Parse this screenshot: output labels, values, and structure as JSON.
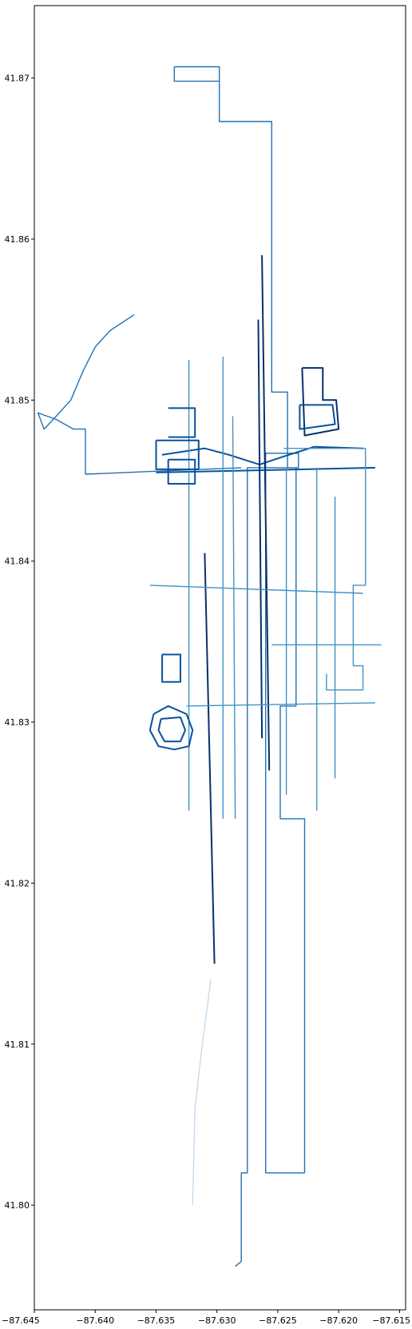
{
  "chart_data": {
    "type": "map",
    "title": "",
    "xlabel": "",
    "ylabel": "",
    "xlim": [
      -87.645,
      -87.6145
    ],
    "ylim": [
      41.7935,
      41.8745
    ],
    "grid": false,
    "x_ticks": [
      {
        "value": -87.645,
        "label": "−87.645"
      },
      {
        "value": -87.64,
        "label": "−87.640"
      },
      {
        "value": -87.635,
        "label": "−87.635"
      },
      {
        "value": -87.63,
        "label": "−87.630"
      },
      {
        "value": -87.625,
        "label": "−87.625"
      },
      {
        "value": -87.62,
        "label": "−87.620"
      },
      {
        "value": -87.615,
        "label": "−87.615"
      }
    ],
    "y_ticks": [
      {
        "value": 41.8,
        "label": "41.80"
      },
      {
        "value": 41.81,
        "label": "41.81"
      },
      {
        "value": 41.82,
        "label": "41.82"
      },
      {
        "value": 41.83,
        "label": "41.83"
      },
      {
        "value": 41.84,
        "label": "41.84"
      },
      {
        "value": 41.85,
        "label": "41.85"
      },
      {
        "value": 41.86,
        "label": "41.86"
      },
      {
        "value": 41.87,
        "label": "41.87"
      }
    ],
    "colors": {
      "darkest": "#08306b",
      "dark": "#08519c",
      "medium": "#2171b5",
      "mid": "#4292c6",
      "light": "#6baed6",
      "lighter": "#9ecae1",
      "pale": "#c6dbef"
    },
    "features": [
      {
        "id": "boundary-outline",
        "shade": "medium",
        "points": [
          [
            -87.6335,
            41.8707
          ],
          [
            -87.6298,
            41.8707
          ],
          [
            -87.6298,
            41.8673
          ],
          [
            -87.6255,
            41.8673
          ],
          [
            -87.6255,
            41.8505
          ],
          [
            -87.6242,
            41.8505
          ],
          [
            -87.6242,
            41.8458
          ],
          [
            -87.6235,
            41.8458
          ],
          [
            -87.6235,
            41.831
          ],
          [
            -87.6248,
            41.831
          ],
          [
            -87.6248,
            41.824
          ],
          [
            -87.6228,
            41.824
          ],
          [
            -87.6228,
            41.802
          ],
          [
            -87.626,
            41.802
          ],
          [
            -87.626,
            41.8467
          ],
          [
            -87.6233,
            41.8467
          ],
          [
            -87.6233,
            41.8458
          ],
          [
            -87.6275,
            41.8458
          ],
          [
            -87.6275,
            41.802
          ],
          [
            -87.628,
            41.802
          ],
          [
            -87.628,
            41.7965
          ],
          [
            -87.6285,
            41.7962
          ]
        ]
      },
      {
        "id": "upper-left-shape",
        "shade": "medium",
        "points": [
          [
            -87.6335,
            41.8707
          ],
          [
            -87.6335,
            41.8698
          ],
          [
            -87.6298,
            41.8698
          ]
        ]
      },
      {
        "id": "northwest-diagonal",
        "shade": "medium",
        "points": [
          [
            -87.6368,
            41.8553
          ],
          [
            -87.6388,
            41.8543
          ],
          [
            -87.64,
            41.8533
          ],
          [
            -87.641,
            41.8518
          ],
          [
            -87.642,
            41.85
          ],
          [
            -87.6432,
            41.849
          ],
          [
            -87.6442,
            41.8482
          ],
          [
            -87.6447,
            41.8492
          ],
          [
            -87.6432,
            41.8488
          ],
          [
            -87.6418,
            41.8482
          ],
          [
            -87.6408,
            41.8482
          ],
          [
            -87.6408,
            41.8454
          ],
          [
            -87.628,
            41.8458
          ]
        ]
      },
      {
        "id": "east-west-street",
        "shade": "dark",
        "points": [
          [
            -87.635,
            41.8455
          ],
          [
            -87.617,
            41.8458
          ]
        ]
      },
      {
        "id": "curved-road",
        "shade": "dark",
        "points": [
          [
            -87.6345,
            41.8466
          ],
          [
            -87.631,
            41.847
          ],
          [
            -87.629,
            41.8466
          ],
          [
            -87.6265,
            41.846
          ],
          [
            -87.6245,
            41.8465
          ],
          [
            -87.622,
            41.8471
          ],
          [
            -87.618,
            41.847
          ]
        ]
      },
      {
        "id": "rail-line-west",
        "shade": "darkest",
        "points": [
          [
            -87.631,
            41.8405
          ],
          [
            -87.6302,
            41.815
          ]
        ]
      },
      {
        "id": "rail-line-center",
        "shade": "darkest",
        "points": [
          [
            -87.6263,
            41.859
          ],
          [
            -87.6257,
            41.827
          ]
        ]
      },
      {
        "id": "rail-line-center-2",
        "shade": "darkest",
        "points": [
          [
            -87.6266,
            41.855
          ],
          [
            -87.6263,
            41.829
          ]
        ]
      },
      {
        "id": "street-ns-1",
        "shade": "mid",
        "points": [
          [
            -87.6323,
            41.8525
          ],
          [
            -87.6323,
            41.8245
          ]
        ]
      },
      {
        "id": "street-ns-2",
        "shade": "mid",
        "points": [
          [
            -87.6295,
            41.8527
          ],
          [
            -87.6295,
            41.824
          ]
        ]
      },
      {
        "id": "street-ns-3",
        "shade": "mid",
        "points": [
          [
            -87.6287,
            41.849
          ],
          [
            -87.6285,
            41.824
          ]
        ]
      },
      {
        "id": "street-ns-4",
        "shade": "mid",
        "points": [
          [
            -87.6243,
            41.8458
          ],
          [
            -87.6243,
            41.8255
          ]
        ]
      },
      {
        "id": "street-ns-5",
        "shade": "mid",
        "points": [
          [
            -87.6218,
            41.8458
          ],
          [
            -87.6218,
            41.8245
          ]
        ]
      },
      {
        "id": "street-ns-6",
        "shade": "mid",
        "points": [
          [
            -87.6203,
            41.844
          ],
          [
            -87.6203,
            41.8265
          ]
        ]
      },
      {
        "id": "street-ew-2",
        "shade": "mid",
        "points": [
          [
            -87.6355,
            41.8385
          ],
          [
            -87.618,
            41.838
          ]
        ]
      },
      {
        "id": "street-ew-3",
        "shade": "mid",
        "points": [
          [
            -87.6255,
            41.8348
          ],
          [
            -87.6165,
            41.8348
          ]
        ]
      },
      {
        "id": "street-ew-4",
        "shade": "mid",
        "points": [
          [
            -87.6325,
            41.831
          ],
          [
            -87.617,
            41.8312
          ]
        ]
      },
      {
        "id": "east-block-outline",
        "shade": "mid",
        "points": [
          [
            -87.6245,
            41.847
          ],
          [
            -87.6178,
            41.847
          ],
          [
            -87.6178,
            41.8385
          ],
          [
            -87.6188,
            41.8385
          ],
          [
            -87.6188,
            41.8335
          ],
          [
            -87.618,
            41.8335
          ],
          [
            -87.618,
            41.832
          ],
          [
            -87.621,
            41.832
          ],
          [
            -87.621,
            41.833
          ]
        ]
      },
      {
        "id": "northeast-building",
        "shade": "darkest",
        "points": [
          [
            -87.623,
            41.852
          ],
          [
            -87.6213,
            41.852
          ],
          [
            -87.6213,
            41.85
          ],
          [
            -87.6202,
            41.85
          ],
          [
            -87.62,
            41.8482
          ],
          [
            -87.6228,
            41.8478
          ],
          [
            -87.623,
            41.852
          ]
        ]
      },
      {
        "id": "northeast-building-2",
        "shade": "dark",
        "points": [
          [
            -87.6232,
            41.8497
          ],
          [
            -87.6205,
            41.8497
          ],
          [
            -87.6203,
            41.8485
          ],
          [
            -87.6232,
            41.8482
          ],
          [
            -87.6232,
            41.8497
          ]
        ]
      },
      {
        "id": "west-block-upper",
        "shade": "dark",
        "points": [
          [
            -87.635,
            41.8475
          ],
          [
            -87.6315,
            41.8475
          ],
          [
            -87.6315,
            41.8457
          ],
          [
            -87.635,
            41.8457
          ],
          [
            -87.635,
            41.8475
          ]
        ]
      },
      {
        "id": "west-block-lower",
        "shade": "dark",
        "points": [
          [
            -87.634,
            41.8463
          ],
          [
            -87.6318,
            41.8463
          ],
          [
            -87.6318,
            41.8448
          ],
          [
            -87.634,
            41.8448
          ],
          [
            -87.634,
            41.8463
          ]
        ]
      },
      {
        "id": "west-block-top",
        "shade": "dark",
        "points": [
          [
            -87.634,
            41.8495
          ],
          [
            -87.6318,
            41.8495
          ],
          [
            -87.6318,
            41.8477
          ],
          [
            -87.634,
            41.8477
          ]
        ]
      },
      {
        "id": "stadium",
        "shade": "dark",
        "points": [
          [
            -87.6352,
            41.8305
          ],
          [
            -87.634,
            41.831
          ],
          [
            -87.6325,
            41.8305
          ],
          [
            -87.632,
            41.8295
          ],
          [
            -87.6323,
            41.8285
          ],
          [
            -87.6335,
            41.8283
          ],
          [
            -87.6348,
            41.8285
          ],
          [
            -87.6355,
            41.8295
          ],
          [
            -87.6352,
            41.8305
          ]
        ]
      },
      {
        "id": "stadium-inner",
        "shade": "dark",
        "points": [
          [
            -87.6346,
            41.8302
          ],
          [
            -87.633,
            41.8303
          ],
          [
            -87.6326,
            41.8295
          ],
          [
            -87.633,
            41.8288
          ],
          [
            -87.6343,
            41.8288
          ],
          [
            -87.6348,
            41.8295
          ],
          [
            -87.6346,
            41.8302
          ]
        ]
      },
      {
        "id": "south-west-building",
        "shade": "dark",
        "points": [
          [
            -87.6345,
            41.8342
          ],
          [
            -87.633,
            41.8342
          ],
          [
            -87.633,
            41.8325
          ],
          [
            -87.6345,
            41.8325
          ],
          [
            -87.6345,
            41.8342
          ]
        ]
      },
      {
        "id": "south-east-tail",
        "shade": "pale",
        "points": [
          [
            -87.6305,
            41.814
          ],
          [
            -87.6312,
            41.81
          ],
          [
            -87.6318,
            41.806
          ],
          [
            -87.632,
            41.8
          ]
        ]
      }
    ]
  }
}
